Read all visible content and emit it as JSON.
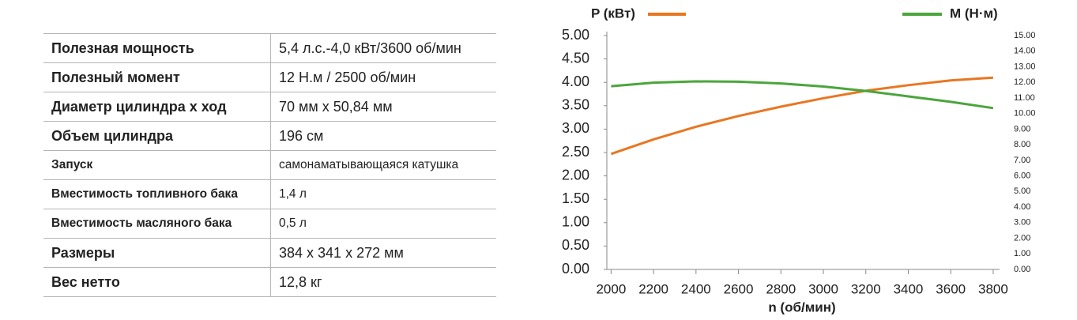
{
  "table": {
    "rows": [
      [
        "Полезная мощность",
        "5,4 л.с.-4,0 кВт/3600 об/мин"
      ],
      [
        "Полезный момент",
        "12 Н.м / 2500 об/мин"
      ],
      [
        "Диаметр цилиндра х ход",
        "70 мм х 50,84 мм"
      ],
      [
        "Объем цилиндра",
        "196 см"
      ],
      [
        "Запуск",
        "самонаматывающаяся катушка"
      ],
      [
        "Вместимость топливного бака",
        "1,4 л"
      ],
      [
        "Вместимость масляного бака",
        "0,5 л"
      ],
      [
        "Размеры",
        "384 х 341 х 272 мм"
      ],
      [
        "Вес нетто",
        "12,8 кг"
      ]
    ]
  },
  "chart_data": {
    "type": "line",
    "x_label": "n (об/мин)",
    "x": [
      2000,
      2200,
      2400,
      2600,
      2800,
      3000,
      3200,
      3400,
      3600,
      3800
    ],
    "xlim": [
      1980,
      3830
    ],
    "xticks": [
      2000,
      2200,
      2400,
      2600,
      2800,
      3000,
      3200,
      3400,
      3600,
      3800
    ],
    "ylim": [
      0,
      5
    ],
    "yticks": [
      {
        "value": 0,
        "label": "0.00"
      },
      {
        "value": 0.5,
        "label": "0.50"
      },
      {
        "value": 1,
        "label": "1.00"
      },
      {
        "value": 1.5,
        "label": "1.50"
      },
      {
        "value": 2,
        "label": "2.00"
      },
      {
        "value": 2.5,
        "label": "2.50"
      },
      {
        "value": 3,
        "label": "3.00"
      },
      {
        "value": 3.5,
        "label": "3.50"
      },
      {
        "value": 4,
        "label": "4.00"
      },
      {
        "value": 4.5,
        "label": "4.50"
      },
      {
        "value": 5,
        "label": "5.00"
      }
    ],
    "y2lim": [
      0,
      15
    ],
    "y2ticks": [
      {
        "value": 0,
        "label": "0.00"
      },
      {
        "value": 1,
        "label": "1.00"
      },
      {
        "value": 2,
        "label": "2.00"
      },
      {
        "value": 3,
        "label": "3.00"
      },
      {
        "value": 4,
        "label": "4.00"
      },
      {
        "value": 5,
        "label": "5.00"
      },
      {
        "value": 6,
        "label": "6.00"
      },
      {
        "value": 7,
        "label": "7.00"
      },
      {
        "value": 8,
        "label": "8.00"
      },
      {
        "value": 9,
        "label": "9.00"
      },
      {
        "value": 10,
        "label": "10.00"
      },
      {
        "value": 11,
        "label": "11.00"
      },
      {
        "value": 12,
        "label": "12.00"
      },
      {
        "value": 13,
        "label": "13.00"
      },
      {
        "value": 14,
        "label": "14.00"
      },
      {
        "value": 15,
        "label": "15.00"
      }
    ],
    "series": [
      {
        "name": "P (кВт)",
        "color": "#e87722",
        "values": [
          2.47,
          2.78,
          3.05,
          3.28,
          3.48,
          3.66,
          3.82,
          3.94,
          4.04,
          4.1
        ]
      },
      {
        "name": "M (Н·м)",
        "color": "#4aa63b",
        "axis": "y2",
        "values": [
          11.75,
          11.98,
          12.06,
          12.04,
          11.93,
          11.73,
          11.45,
          11.1,
          10.75,
          10.35
        ]
      }
    ]
  }
}
